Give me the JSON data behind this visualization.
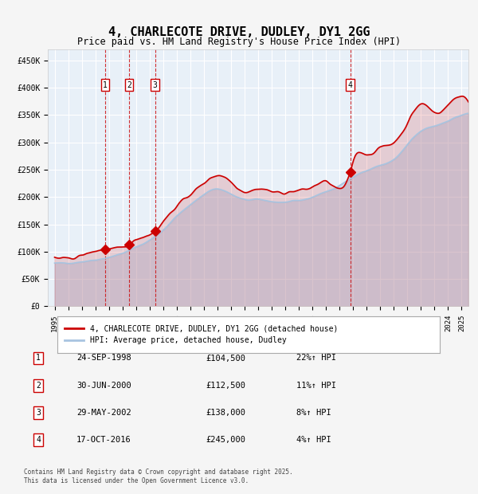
{
  "title": "4, CHARLECOTE DRIVE, DUDLEY, DY1 2GG",
  "subtitle": "Price paid vs. HM Land Registry's House Price Index (HPI)",
  "legend_line1": "4, CHARLECOTE DRIVE, DUDLEY, DY1 2GG (detached house)",
  "legend_line2": "HPI: Average price, detached house, Dudley",
  "footer": "Contains HM Land Registry data © Crown copyright and database right 2025.\nThis data is licensed under the Open Government Licence v3.0.",
  "transactions": [
    {
      "num": 1,
      "date": "24-SEP-1998",
      "price": 104500,
      "pct": "22%↑ HPI",
      "year_x": 1998.73
    },
    {
      "num": 2,
      "date": "30-JUN-2000",
      "price": 112500,
      "pct": "11%↑ HPI",
      "year_x": 2000.49
    },
    {
      "num": 3,
      "date": "29-MAY-2002",
      "price": 138000,
      "pct": "8%↑ HPI",
      "year_x": 2002.41
    },
    {
      "num": 4,
      "date": "17-OCT-2016",
      "price": 245000,
      "pct": "4%↑ HPI",
      "year_x": 2016.79
    }
  ],
  "hpi_color": "#a8c4e0",
  "price_color": "#cc0000",
  "dashed_color": "#cc0000",
  "bg_color": "#ddeeff",
  "plot_bg": "#e8f0f8",
  "grid_color": "#ffffff",
  "ylim": [
    0,
    470000
  ],
  "xlim": [
    1994.5,
    2025.5
  ],
  "yticks": [
    0,
    50000,
    100000,
    150000,
    200000,
    250000,
    300000,
    350000,
    400000,
    450000
  ],
  "ytick_labels": [
    "£0",
    "£50K",
    "£100K",
    "£150K",
    "£200K",
    "£250K",
    "£300K",
    "£350K",
    "£400K",
    "£450K"
  ],
  "xticks": [
    1995,
    1996,
    1997,
    1998,
    1999,
    2000,
    2001,
    2002,
    2003,
    2004,
    2005,
    2006,
    2007,
    2008,
    2009,
    2010,
    2011,
    2012,
    2013,
    2014,
    2015,
    2016,
    2017,
    2018,
    2019,
    2020,
    2021,
    2022,
    2023,
    2024,
    2025
  ]
}
